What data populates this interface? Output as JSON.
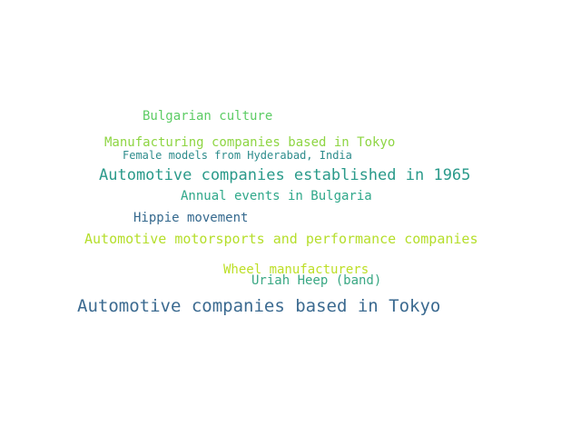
{
  "words": [
    {
      "text": "Bulgarian culture",
      "color": "#5ccc64"
    },
    {
      "text": "Manufacturing companies based in Tokyo",
      "color": "#8ed543"
    },
    {
      "text": "Female models from Hyderabad, India",
      "color": "#2e8c8c"
    },
    {
      "text": "Automotive companies established in 1965",
      "color": "#2a9a8a"
    },
    {
      "text": "Annual events in Bulgaria",
      "color": "#2fa88a"
    },
    {
      "text": "Hippie movement",
      "color": "#35698e"
    },
    {
      "text": "Automotive motorsports and performance companies",
      "color": "#b5de2b"
    },
    {
      "text": "Wheel manufacturers",
      "color": "#bddf26"
    },
    {
      "text": "Uriah Heep (band)",
      "color": "#3aa884"
    },
    {
      "text": "Automotive companies based in Tokyo",
      "color": "#3b6a90"
    }
  ]
}
